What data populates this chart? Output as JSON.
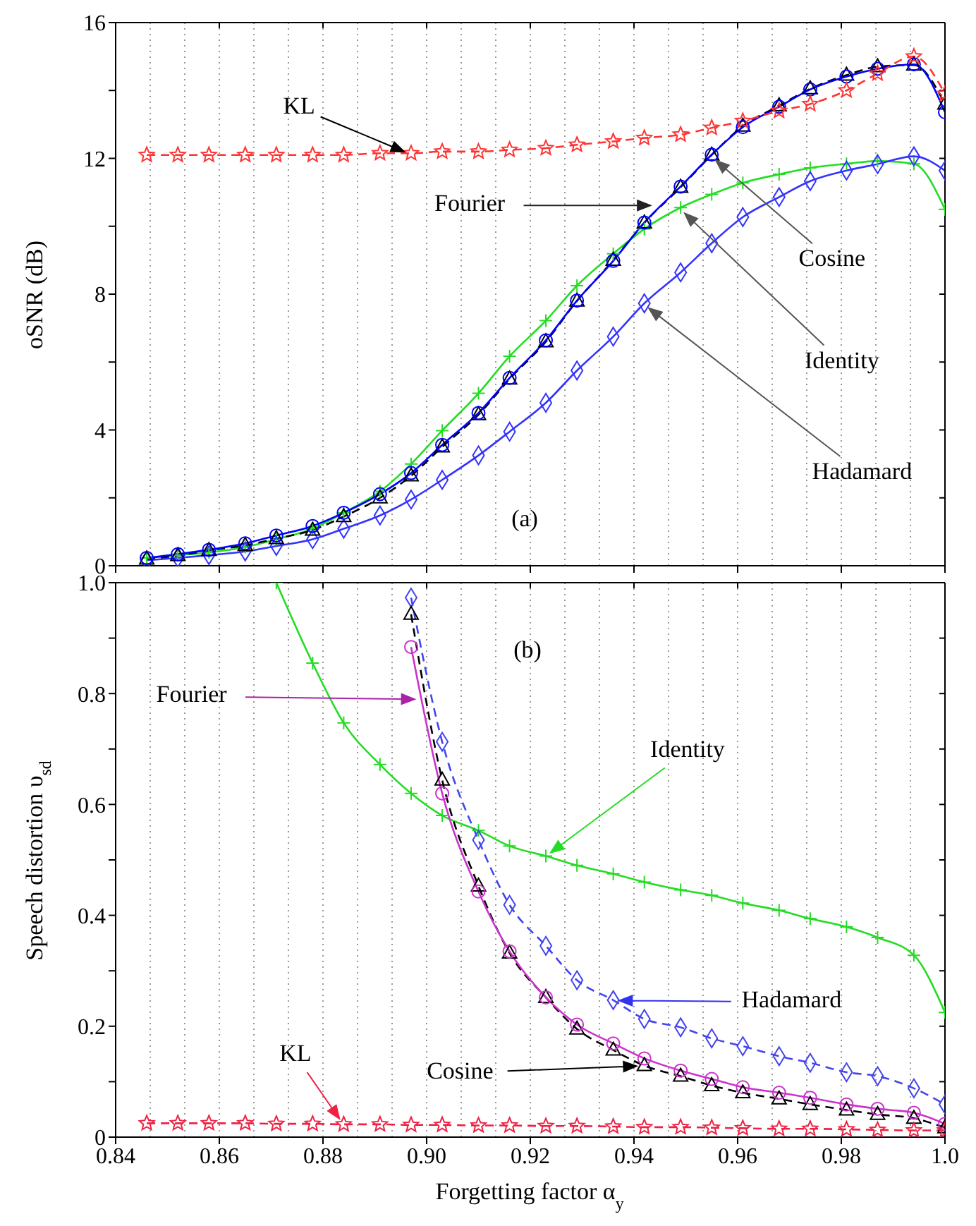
{
  "chart_data": [
    {
      "type": "line",
      "ylabel": "oSNR (dB)",
      "xlim": [
        0.84,
        1.0
      ],
      "xticks": [
        0.84,
        0.86,
        0.88,
        0.9,
        0.92,
        0.94,
        0.96,
        0.98,
        1.0
      ],
      "ylim": [
        0,
        16
      ],
      "yticks": [
        0,
        {
          "value": 2,
          "label": null
        },
        4,
        {
          "value": 6,
          "label": null
        },
        8,
        {
          "value": 10,
          "label": null
        },
        12,
        {
          "value": 14,
          "label": null
        },
        16
      ],
      "tick_labels": "y",
      "grid": true,
      "legend": false,
      "x": [
        0.846,
        0.852,
        0.858,
        0.865,
        0.871,
        0.878,
        0.884,
        0.891,
        0.897,
        0.903,
        0.91,
        0.916,
        0.923,
        0.929,
        0.936,
        0.942,
        0.949,
        0.955,
        0.961,
        0.968,
        0.974,
        0.981,
        0.987,
        0.994,
        1.0
      ],
      "series": [
        {
          "name": "Identity",
          "color": "#22dd22",
          "marker": "cross",
          "line_style": "solid",
          "values": [
            0.23,
            0.31,
            0.39,
            0.55,
            0.78,
            1.09,
            1.56,
            2.19,
            3.0,
            3.98,
            5.08,
            6.17,
            7.22,
            8.25,
            9.19,
            9.92,
            10.55,
            10.94,
            11.28,
            11.53,
            11.72,
            11.84,
            11.92,
            11.84,
            10.5
          ]
        },
        {
          "name": "Hadamard",
          "color": "#3333ff",
          "marker": "diamond",
          "line_style": "solid",
          "values": [
            0.16,
            0.23,
            0.31,
            0.42,
            0.58,
            0.78,
            1.09,
            1.48,
            1.95,
            2.53,
            3.25,
            3.95,
            4.8,
            5.75,
            6.75,
            7.73,
            8.64,
            9.5,
            10.27,
            10.86,
            11.33,
            11.64,
            11.83,
            12.06,
            11.64
          ]
        },
        {
          "name": "Cosine",
          "color": "#000000",
          "marker": "triangle",
          "line_style": "dashed",
          "values": [
            0.2,
            0.3,
            0.45,
            0.6,
            0.8,
            1.05,
            1.45,
            2.0,
            2.65,
            3.5,
            4.45,
            5.5,
            6.6,
            7.8,
            9.0,
            10.1,
            11.15,
            12.1,
            12.95,
            13.55,
            14.05,
            14.45,
            14.7,
            14.75,
            13.6
          ]
        },
        {
          "name": "Fourier",
          "color": "#0000ff",
          "marker": "circle",
          "line_style": "solid",
          "values": [
            0.23,
            0.34,
            0.47,
            0.66,
            0.89,
            1.17,
            1.56,
            2.11,
            2.73,
            3.56,
            4.5,
            5.53,
            6.64,
            7.81,
            8.98,
            10.11,
            11.17,
            12.11,
            12.92,
            13.52,
            14.03,
            14.41,
            14.64,
            14.77,
            13.36
          ]
        },
        {
          "name": "KL",
          "color": "#ff3333",
          "marker": "star",
          "line_style": "dashed",
          "values": [
            12.1,
            12.1,
            12.1,
            12.1,
            12.1,
            12.1,
            12.1,
            12.15,
            12.15,
            12.2,
            12.2,
            12.25,
            12.3,
            12.4,
            12.5,
            12.6,
            12.7,
            12.9,
            13.1,
            13.4,
            13.6,
            14.0,
            14.5,
            15.0,
            13.9
          ]
        }
      ],
      "annotations": [
        "(a)"
      ]
    },
    {
      "type": "line",
      "xlabel": "Forgetting factor α$_{y}$",
      "ylabel": "Speech distortion υ$_{sd}$",
      "xlim": [
        0.84,
        1.0
      ],
      "xticks": [
        0.84,
        0.86,
        0.88,
        {
          "value": 0.9,
          "label": "0.90"
        },
        0.92,
        0.94,
        0.96,
        0.98,
        {
          "value": 1,
          "label": "1.0"
        }
      ],
      "ylim": [
        0,
        1
      ],
      "yticks": [
        0,
        {
          "value": 0.1,
          "label": null
        },
        0.2,
        {
          "value": 0.3,
          "label": null
        },
        0.4,
        {
          "value": 0.5,
          "label": null
        },
        0.6,
        {
          "value": 0.7,
          "label": null
        },
        0.8,
        {
          "value": 0.9,
          "label": null
        },
        {
          "value": 1,
          "label": "1.0"
        }
      ],
      "grid": true,
      "legend": false,
      "x": [
        0.846,
        0.852,
        0.858,
        0.865,
        0.871,
        0.878,
        0.884,
        0.891,
        0.897,
        0.903,
        0.91,
        0.916,
        0.923,
        0.929,
        0.936,
        0.942,
        0.949,
        0.955,
        0.961,
        0.968,
        0.974,
        0.981,
        0.987,
        0.994,
        1.0
      ],
      "series": [
        {
          "name": "Identity",
          "color": "#22dd22",
          "marker": "cross",
          "line_style": "solid",
          "values": [
            null,
            null,
            null,
            null,
            1.0,
            0.855,
            0.747,
            0.672,
            0.62,
            0.58,
            0.553,
            0.525,
            0.507,
            0.49,
            0.475,
            0.46,
            0.446,
            0.436,
            0.422,
            0.409,
            0.394,
            0.379,
            0.36,
            0.328,
            0.225
          ]
        },
        {
          "name": "Hadamard",
          "color": "#4444ee",
          "marker": "diamond",
          "line_style": "dashed",
          "values": [
            null,
            null,
            null,
            null,
            null,
            null,
            null,
            null,
            0.973,
            0.713,
            0.536,
            0.419,
            0.345,
            0.283,
            0.247,
            0.213,
            0.198,
            0.178,
            0.164,
            0.146,
            0.134,
            0.117,
            0.11,
            0.088,
            0.059
          ]
        },
        {
          "name": "Cosine",
          "color": "#000000",
          "marker": "triangle",
          "line_style": "dashed",
          "values": [
            null,
            null,
            null,
            null,
            null,
            null,
            null,
            null,
            0.943,
            0.644,
            0.453,
            0.332,
            0.252,
            0.195,
            0.157,
            0.129,
            0.11,
            0.093,
            0.08,
            0.069,
            0.059,
            0.049,
            0.041,
            0.034,
            0.017
          ]
        },
        {
          "name": "Fourier",
          "color": "#cc33cc",
          "marker": "circle",
          "line_style": "solid",
          "values": [
            null,
            null,
            null,
            null,
            null,
            null,
            null,
            null,
            0.884,
            0.62,
            0.443,
            0.335,
            0.252,
            0.203,
            0.169,
            0.142,
            0.12,
            0.105,
            0.09,
            0.08,
            0.071,
            0.059,
            0.051,
            0.044,
            0.024
          ]
        },
        {
          "name": "KL",
          "color": "#ee2244",
          "marker": "star",
          "line_style": "dashed",
          "values": [
            0.025,
            0.025,
            0.025,
            0.025,
            0.024,
            0.024,
            0.023,
            0.023,
            0.022,
            0.022,
            0.021,
            0.021,
            0.02,
            0.02,
            0.019,
            0.018,
            0.018,
            0.017,
            0.016,
            0.015,
            0.015,
            0.014,
            0.013,
            0.012,
            0.012
          ]
        }
      ],
      "annotations": [
        "(b)"
      ]
    }
  ]
}
